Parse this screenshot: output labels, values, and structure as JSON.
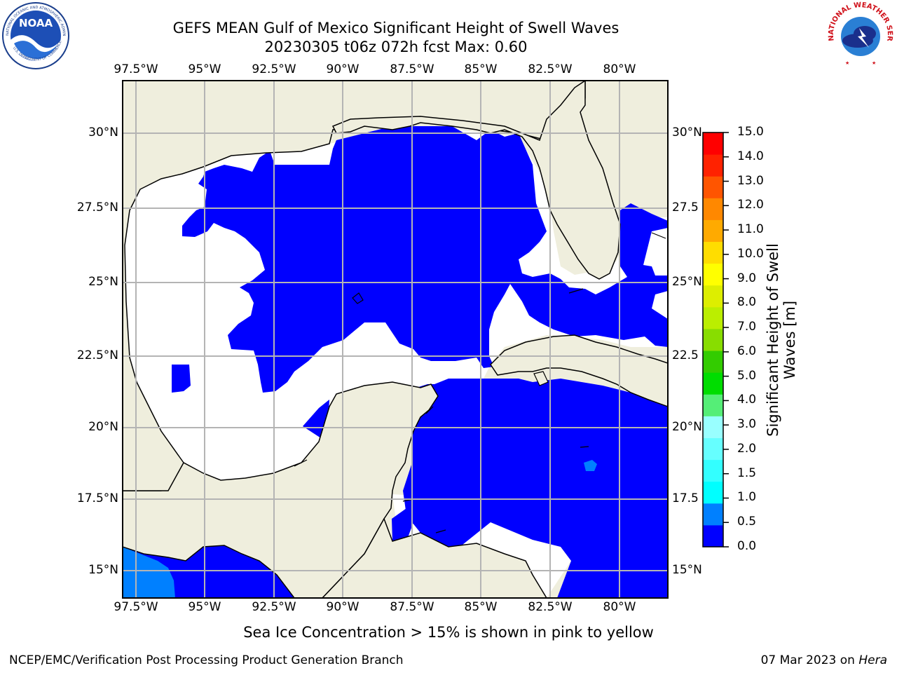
{
  "header": {
    "title_line1": "GEFS MEAN Gulf of Mexico Significant Height of Swell Waves",
    "title_line2": "20230305 t06z 072h fcst   Max: 0.60"
  },
  "logos": {
    "left": {
      "name": "NOAA",
      "ring_text": "NATIONAL OCEANIC AND ATMOSPHERIC ADMINISTRATION · U.S. DEPARTMENT OF COMMERCE"
    },
    "right": {
      "name": "NATIONAL WEATHER SERVICE"
    }
  },
  "map": {
    "lon_ticks_top": [
      "97.5°W",
      "95°W",
      "92.5°W",
      "90°W",
      "87.5°W",
      "85°W",
      "82.5°W",
      "80°W"
    ],
    "lon_ticks_bottom": [
      "97.5°W",
      "95°W",
      "92.5°W",
      "90°W",
      "87.5°W",
      "85°W",
      "82.5°W",
      "80°W"
    ],
    "lat_ticks_left": [
      "30°N",
      "27.5°N",
      "25°N",
      "22.5°N",
      "20°N",
      "17.5°N",
      "15°N"
    ],
    "lat_ticks_right": [
      "30°N",
      "27.5",
      "25°N",
      "22.5",
      "20°N",
      "17.5",
      "15°N"
    ],
    "colors": {
      "land": "#efeedd",
      "ocean_low": "#0000ff",
      "ocean_mid": "#0080ff",
      "grid": "#b4b4b4",
      "coast": "#000000"
    }
  },
  "colorbar": {
    "label_line1": "Significant Height of Swell",
    "label_line2": "Waves [m]",
    "ticks": [
      "0.0",
      "0.5",
      "1.0",
      "1.5",
      "2.0",
      "3.0",
      "4.0",
      "5.0",
      "6.0",
      "7.0",
      "8.0",
      "9.0",
      "10.0",
      "11.0",
      "12.0",
      "13.0",
      "14.0",
      "15.0"
    ],
    "colors": [
      "#0000ff",
      "#0080ff",
      "#00ffff",
      "#33ffff",
      "#66ffff",
      "#99ffff",
      "#55ee77",
      "#00dd00",
      "#33cc00",
      "#88dd00",
      "#bbee00",
      "#ddee00",
      "#ffff00",
      "#ffdd00",
      "#ffaa00",
      "#ff8800",
      "#ff5500",
      "#ff2200",
      "#ff0000"
    ]
  },
  "footer": {
    "note": "Sea Ice Concentration > 15% is shown in pink to yellow",
    "credit": "NCEP/EMC/Verification Post Processing Product Generation Branch",
    "date": "07 Mar 2023 on",
    "host": "Hera"
  }
}
